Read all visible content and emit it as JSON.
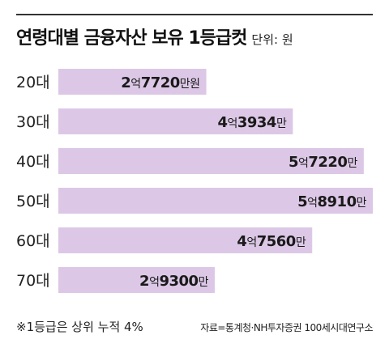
{
  "chart_data": {
    "type": "bar",
    "orientation": "horizontal",
    "title": "연령대별 금융자산 보유 1등급컷",
    "unit_label": "단위: 원",
    "categories": [
      "20대",
      "30대",
      "40대",
      "50대",
      "60대",
      "70대"
    ],
    "values": [
      277200000,
      439340000,
      572200000,
      589100000,
      475600000,
      293000000
    ],
    "labels": [
      {
        "eok": "2",
        "eok_unit": "억",
        "man": "7720",
        "man_unit": "만원"
      },
      {
        "eok": "4",
        "eok_unit": "억",
        "man": "3934",
        "man_unit": "만"
      },
      {
        "eok": "5",
        "eok_unit": "억",
        "man": "7220",
        "man_unit": "만"
      },
      {
        "eok": "5",
        "eok_unit": "억",
        "man": "8910",
        "man_unit": "만"
      },
      {
        "eok": "4",
        "eok_unit": "억",
        "man": "7560",
        "man_unit": "만"
      },
      {
        "eok": "2",
        "eok_unit": "억",
        "man": "9300",
        "man_unit": "만"
      }
    ],
    "bar_color": "#dcc8e6",
    "grid": false
  },
  "footnote": "※1등급은 상위 누적 4%",
  "source": "자료=통계청·NH투자증권 100세시대연구소"
}
